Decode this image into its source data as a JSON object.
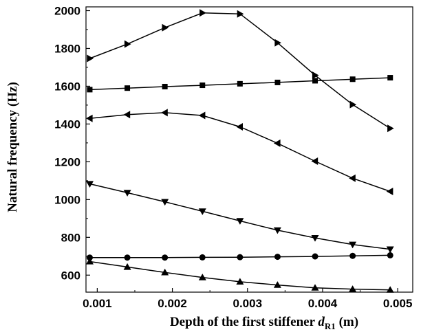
{
  "chart_data": {
    "type": "line",
    "title": "",
    "xlabel": {
      "prefix": "Depth of the first stiffener ",
      "symbol": "d",
      "subscript": "R1",
      "suffix": " (m)"
    },
    "ylabel": "Natural frequency (Hz)",
    "xlim": [
      0.00085,
      0.0052
    ],
    "ylim": [
      510,
      2020
    ],
    "xticks": [
      0.001,
      0.002,
      0.003,
      0.004,
      0.005
    ],
    "xtick_labels": [
      "0.001",
      "0.002",
      "0.003",
      "0.004",
      "0.005"
    ],
    "yticks": [
      600,
      800,
      1000,
      1200,
      1400,
      1600,
      1800,
      2000
    ],
    "ytick_labels": [
      "600",
      "800",
      "1000",
      "1200",
      "1400",
      "1600",
      "1800",
      "2000"
    ],
    "x": [
      0.0009,
      0.0014,
      0.0019,
      0.0024,
      0.0029,
      0.0034,
      0.0039,
      0.0044,
      0.0049
    ],
    "grid": false,
    "legend": "none",
    "series": [
      {
        "marker": "triangle-up",
        "values": [
          672,
          643,
          614,
          588,
          565,
          548,
          533,
          526,
          522
        ]
      },
      {
        "marker": "circle",
        "values": [
          693,
          693,
          693,
          694,
          695,
          697,
          699,
          702,
          705
        ]
      },
      {
        "marker": "triangle-down",
        "values": [
          1083,
          1036,
          988,
          938,
          887,
          838,
          797,
          762,
          737
        ]
      },
      {
        "marker": "triangle-left",
        "values": [
          1430,
          1450,
          1460,
          1445,
          1385,
          1298,
          1203,
          1113,
          1043
        ]
      },
      {
        "marker": "square",
        "values": [
          1582,
          1590,
          1598,
          1605,
          1613,
          1620,
          1629,
          1637,
          1645
        ]
      },
      {
        "marker": "triangle-right",
        "values": [
          1747,
          1823,
          1910,
          1988,
          1983,
          1830,
          1658,
          1503,
          1377
        ]
      }
    ],
    "colors": {
      "line": "#000000",
      "axis": "#000000",
      "background": "#ffffff"
    }
  }
}
